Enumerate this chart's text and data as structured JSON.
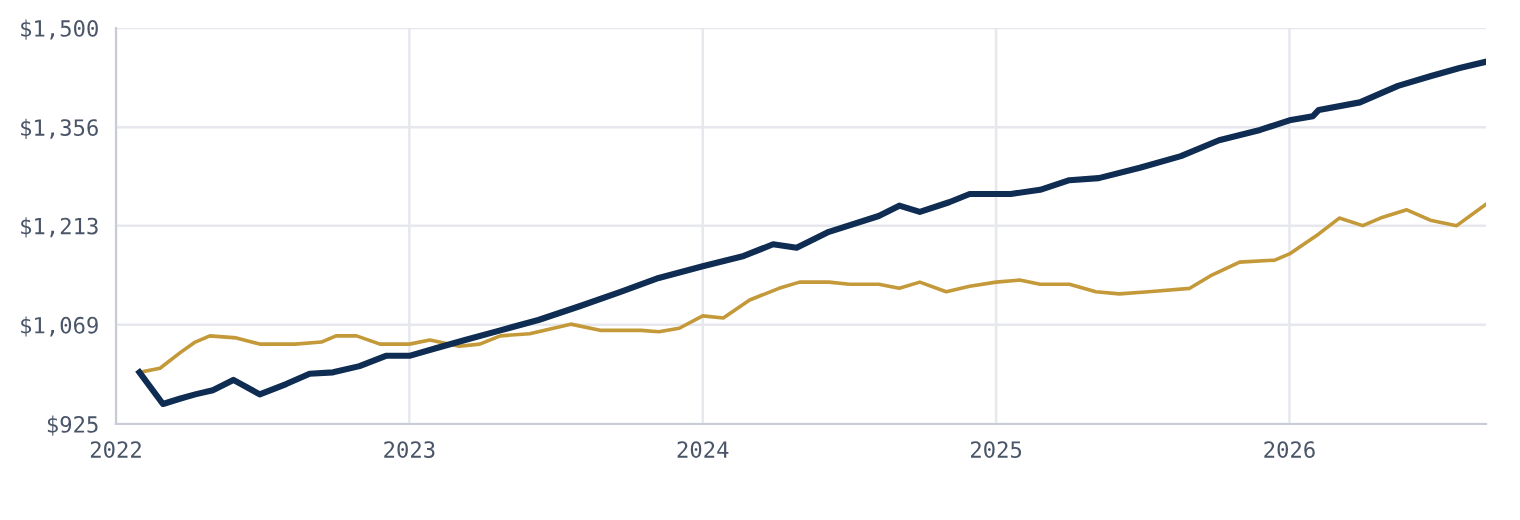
{
  "chart_data": {
    "type": "line",
    "xlim": [
      2022,
      2026.67
    ],
    "xticks": [
      2022,
      2023,
      2024,
      2025,
      2026
    ],
    "ylim": [
      925,
      1500
    ],
    "yticks": [
      {
        "value": 925,
        "label": "$925"
      },
      {
        "value": 1069,
        "label": "$1,069"
      },
      {
        "value": 1213,
        "label": "$1,213"
      },
      {
        "value": 1356,
        "label": "$1,356"
      },
      {
        "value": 1500,
        "label": "$1,500"
      }
    ],
    "grid": true,
    "marker": "none",
    "line_style": "solid",
    "series": [
      {
        "color": "#0f2c52",
        "x": [
          2022.08,
          2022.16,
          2022.22,
          2022.27,
          2022.33,
          2022.4,
          2022.49,
          2022.58,
          2022.66,
          2022.74,
          2022.83,
          2022.92,
          2023.0,
          2023.09,
          2023.19,
          2023.31,
          2023.44,
          2023.58,
          2023.72,
          2023.85,
          2024.0,
          2024.14,
          2024.24,
          2024.32,
          2024.43,
          2024.6,
          2024.67,
          2024.74,
          2024.84,
          2024.91,
          2025.05,
          2025.15,
          2025.25,
          2025.35,
          2025.49,
          2025.63,
          2025.76,
          2025.9,
          2026.0,
          2026.08,
          2026.1,
          2026.24,
          2026.37,
          2026.48,
          2026.58,
          2026.67
        ],
        "values": [
          1000,
          954,
          962,
          968,
          974,
          989,
          968,
          983,
          998,
          1000,
          1009,
          1024,
          1024,
          1035,
          1047,
          1061,
          1076,
          1096,
          1117,
          1137,
          1154,
          1169,
          1186,
          1181,
          1204,
          1227,
          1242,
          1233,
          1247,
          1259,
          1259,
          1265,
          1279,
          1282,
          1297,
          1314,
          1337,
          1352,
          1366,
          1372,
          1381,
          1392,
          1416,
          1430,
          1442,
          1451
        ]
      },
      {
        "color": "#c4993a",
        "x": [
          2022.08,
          2022.15,
          2022.22,
          2022.27,
          2022.32,
          2022.41,
          2022.49,
          2022.61,
          2022.7,
          2022.75,
          2022.82,
          2022.9,
          2023.0,
          2023.07,
          2023.17,
          2023.24,
          2023.31,
          2023.41,
          2023.55,
          2023.65,
          2023.79,
          2023.85,
          2023.92,
          2024.0,
          2024.07,
          2024.16,
          2024.26,
          2024.33,
          2024.43,
          2024.5,
          2024.6,
          2024.67,
          2024.74,
          2024.83,
          2024.91,
          2025.0,
          2025.08,
          2025.15,
          2025.25,
          2025.34,
          2025.42,
          2025.52,
          2025.66,
          2025.73,
          2025.83,
          2025.95,
          2026.0,
          2026.1,
          2026.17,
          2026.25,
          2026.31,
          2026.4,
          2026.48,
          2026.57,
          2026.67
        ],
        "values": [
          1000,
          1006,
          1029,
          1044,
          1053,
          1050,
          1041,
          1041,
          1044,
          1053,
          1053,
          1041,
          1041,
          1047,
          1038,
          1041,
          1053,
          1056,
          1070,
          1061,
          1061,
          1059,
          1064,
          1082,
          1079,
          1105,
          1122,
          1131,
          1131,
          1128,
          1128,
          1122,
          1131,
          1117,
          1125,
          1131,
          1134,
          1128,
          1128,
          1117,
          1114,
          1117,
          1122,
          1140,
          1160,
          1163,
          1172,
          1201,
          1224,
          1213,
          1224,
          1236,
          1221,
          1213,
          1244
        ]
      }
    ]
  }
}
